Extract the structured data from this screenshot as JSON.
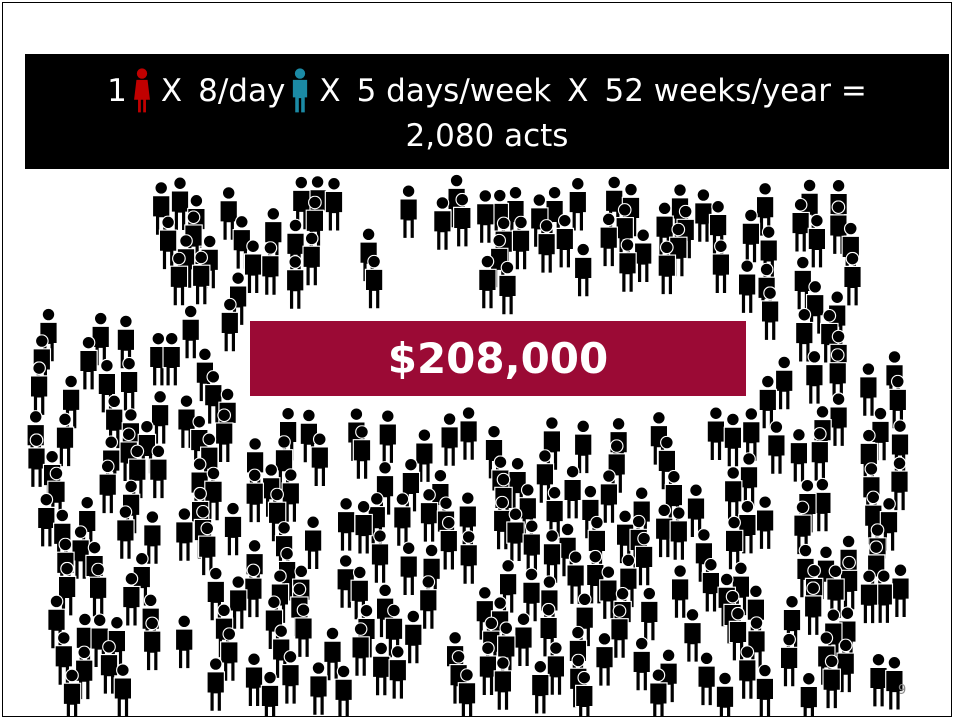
{
  "header": {
    "line1": [
      "1",
      "X",
      "8/day",
      "X",
      "5 days/week",
      "X",
      "52 weeks/year ="
    ],
    "line2": "2,080 acts"
  },
  "total": "$208,000",
  "page_number": "9"
}
